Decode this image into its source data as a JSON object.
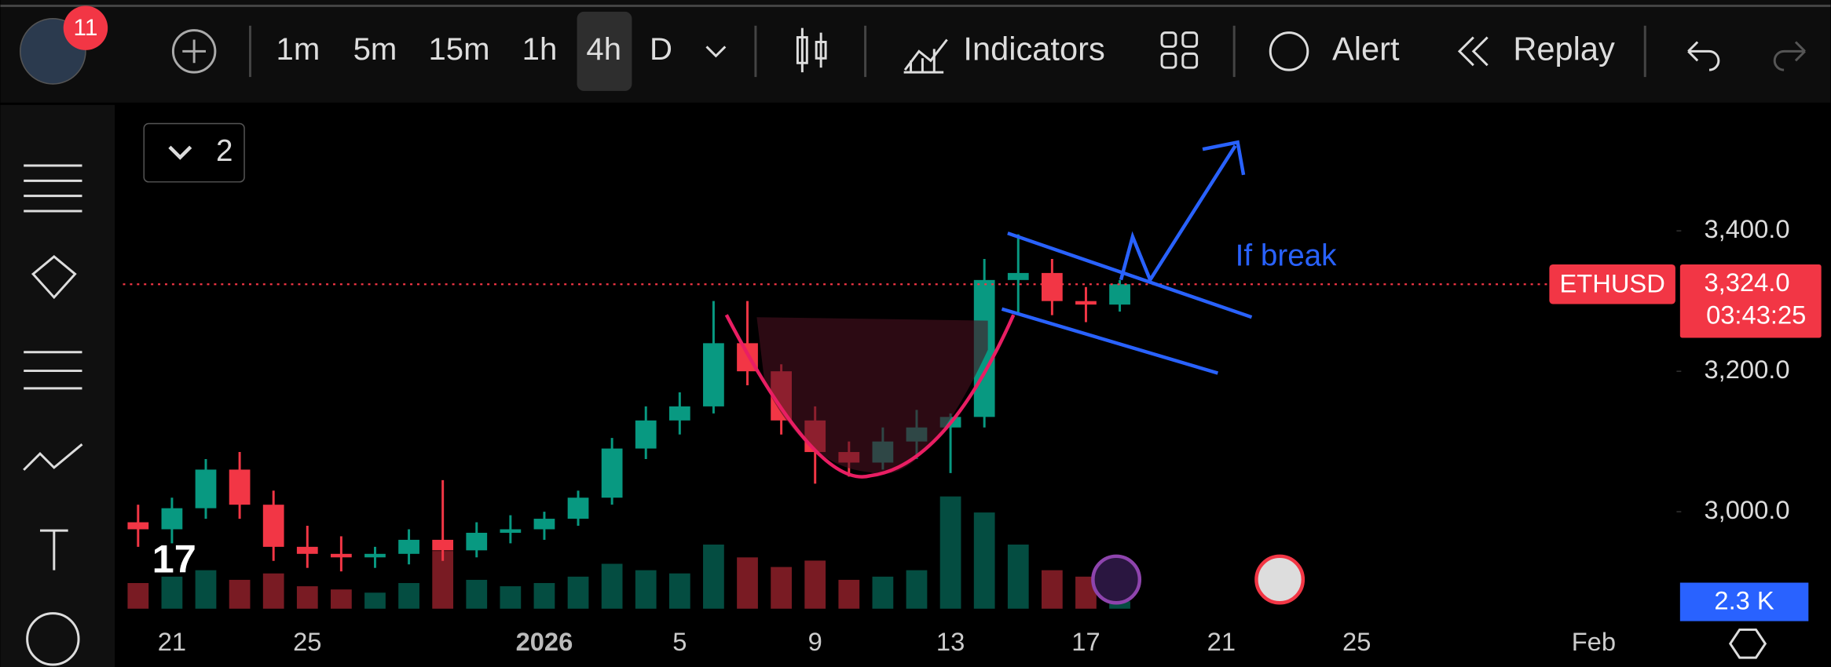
{
  "toolbar": {
    "badge": "11",
    "intervals": [
      "1m",
      "5m",
      "15m",
      "1h",
      "4h",
      "D"
    ],
    "indicators": "Indicators",
    "alert": "Alert",
    "replay": "Replay"
  },
  "legend_toggle": "2",
  "annotation": "If break",
  "chart_data": {
    "type": "candlestick",
    "symbol": "ETHUSD",
    "categories": [
      null,
      "21",
      null,
      null,
      null,
      "25",
      null,
      null,
      null,
      null,
      null,
      null,
      "2026",
      null,
      null,
      null,
      "5",
      null,
      null,
      null,
      "9",
      null,
      null,
      null,
      "13",
      null,
      null,
      null,
      "17",
      null,
      null,
      null,
      "21",
      null,
      null,
      null,
      "25",
      null,
      null,
      null,
      null,
      null,
      null,
      "Feb",
      null
    ],
    "open": [
      2985,
      2975,
      3005,
      3060,
      3010,
      2950,
      2940,
      2935,
      2940,
      2960,
      2945,
      2970,
      2975,
      2990,
      3020,
      3090,
      3130,
      3150,
      3240,
      3200,
      3130,
      3085,
      3070,
      3100,
      3120,
      3135,
      3330,
      3340,
      3300,
      3295,
      null,
      null,
      null,
      null,
      null,
      null,
      null,
      null,
      null,
      null,
      null,
      null,
      null,
      null,
      null
    ],
    "high": [
      3010,
      3020,
      3075,
      3085,
      3030,
      2980,
      2965,
      2950,
      2975,
      3045,
      2985,
      2995,
      3000,
      3030,
      3105,
      3150,
      3170,
      3300,
      3300,
      3210,
      3150,
      3100,
      3120,
      3145,
      3140,
      3360,
      3395,
      3360,
      3320,
      3330,
      null,
      null,
      null,
      null,
      null,
      null,
      null,
      null,
      null,
      null,
      null,
      null,
      null,
      null,
      null
    ],
    "low": [
      2950,
      2955,
      2990,
      2990,
      2930,
      2920,
      2915,
      2920,
      2925,
      2930,
      2935,
      2955,
      2960,
      2980,
      3010,
      3075,
      3110,
      3140,
      3180,
      3110,
      3040,
      3050,
      3060,
      3075,
      3055,
      3120,
      3280,
      3280,
      3270,
      3285,
      null,
      null,
      null,
      null,
      null,
      null,
      null,
      null,
      null,
      null,
      null,
      null,
      null,
      null,
      null
    ],
    "close": [
      2975,
      3005,
      3060,
      3010,
      2950,
      2940,
      2935,
      2940,
      2960,
      2945,
      2970,
      2975,
      2990,
      3020,
      3090,
      3130,
      3150,
      3240,
      3200,
      3130,
      3085,
      3070,
      3100,
      3120,
      3135,
      3330,
      3340,
      3300,
      3295,
      3324,
      null,
      null,
      null,
      null,
      null,
      null,
      null,
      null,
      null,
      null,
      null,
      null,
      null,
      null,
      null
    ],
    "volume": [
      8,
      10,
      12,
      9,
      11,
      7,
      6,
      5,
      8,
      18,
      9,
      7,
      8,
      10,
      14,
      12,
      11,
      20,
      16,
      13,
      15,
      9,
      10,
      12,
      35,
      30,
      20,
      12,
      10,
      2.3,
      null,
      null,
      null,
      null,
      null,
      null,
      null,
      null,
      null,
      null,
      null,
      null,
      null,
      null,
      null
    ],
    "vlim": [
      0,
      40
    ],
    "last_volume_label": "2.3 K",
    "up_color": "#089981",
    "down_color": "#f23645",
    "ylim": [
      2832,
      3576
    ],
    "yticks": [
      {
        "value": 3000,
        "label": "3,000.0"
      },
      {
        "value": 3200,
        "label": "3,200.0"
      },
      {
        "value": 3400,
        "label": "3,400.0"
      }
    ],
    "price_line": {
      "value": 3324,
      "label": "3,324.0"
    },
    "countdown": "03:43:25",
    "grid": false
  }
}
